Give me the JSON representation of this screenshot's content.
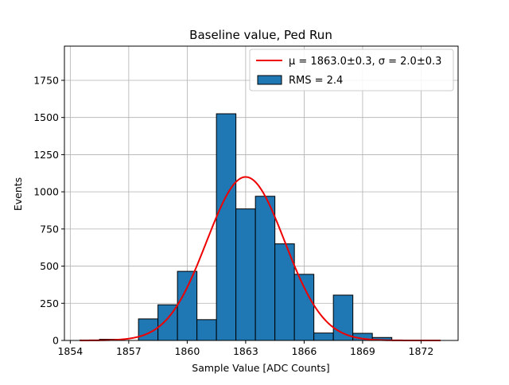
{
  "chart_data": {
    "type": "bar",
    "title": "Baseline value, Ped Run",
    "xlabel": "Sample Value [ADC Counts]",
    "ylabel": "Events",
    "xlim": [
      1853.7,
      1873.9
    ],
    "ylim": [
      0,
      1980
    ],
    "xticks": [
      1854,
      1857,
      1860,
      1863,
      1866,
      1869,
      1872
    ],
    "yticks": [
      0,
      250,
      500,
      750,
      1000,
      1250,
      1500,
      1750
    ],
    "grid": true,
    "bin_width": 1,
    "bins": [
      {
        "left": 1854.5,
        "value": 3
      },
      {
        "left": 1855.5,
        "value": 8
      },
      {
        "left": 1856.5,
        "value": 0
      },
      {
        "left": 1857.5,
        "value": 145
      },
      {
        "left": 1858.5,
        "value": 240
      },
      {
        "left": 1859.5,
        "value": 465
      },
      {
        "left": 1860.5,
        "value": 140
      },
      {
        "left": 1861.5,
        "value": 1525
      },
      {
        "left": 1862.5,
        "value": 885
      },
      {
        "left": 1863.5,
        "value": 970
      },
      {
        "left": 1864.5,
        "value": 650
      },
      {
        "left": 1865.5,
        "value": 445
      },
      {
        "left": 1866.5,
        "value": 50
      },
      {
        "left": 1867.5,
        "value": 305
      },
      {
        "left": 1868.5,
        "value": 48
      },
      {
        "left": 1869.5,
        "value": 20
      },
      {
        "left": 1870.5,
        "value": 0
      }
    ],
    "fit": {
      "mu": 1863.0,
      "sigma": 2.0,
      "amplitude": 1100,
      "x_range": [
        1854.5,
        1873.0
      ],
      "color": "#ee0000"
    },
    "bar_color": "#1f77b4",
    "legend": {
      "position": "top-right",
      "fit_label": "μ = 1863.0±0.3, σ = 2.0±0.3",
      "hist_label": "RMS = 2.4"
    }
  }
}
